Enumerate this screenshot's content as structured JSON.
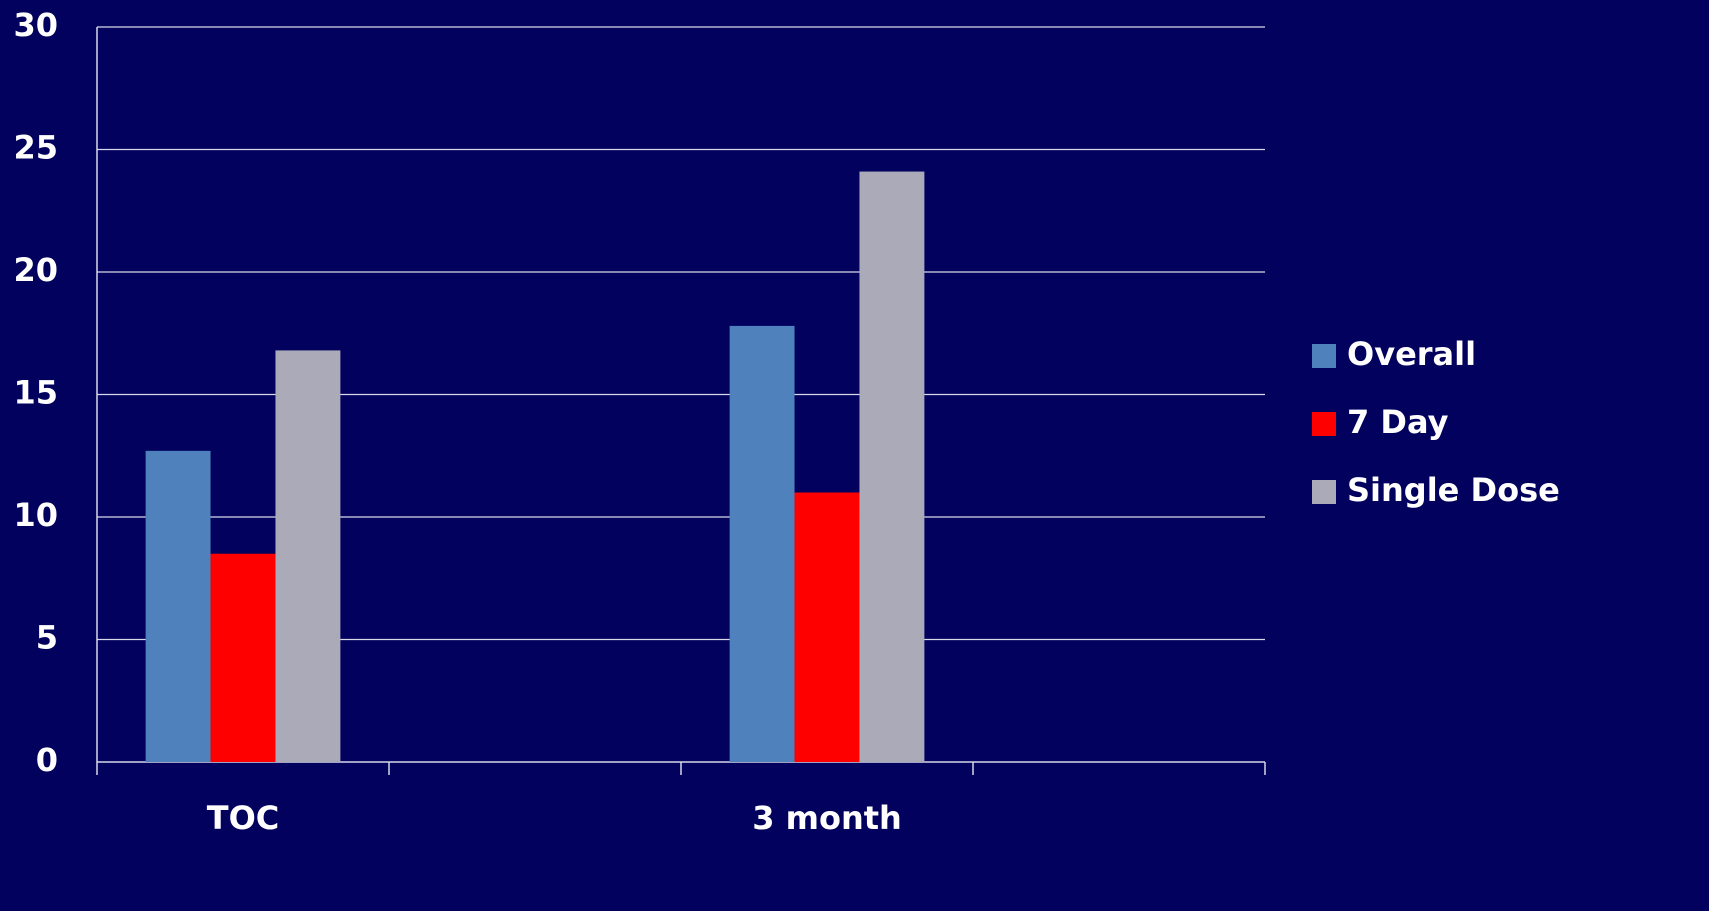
{
  "chart_data": {
    "type": "bar",
    "categories": [
      "TOC",
      null,
      "3 month",
      null
    ],
    "series": [
      {
        "name": "Overall",
        "color": "#4f81bd",
        "values": [
          12.7,
          null,
          17.8,
          null
        ]
      },
      {
        "name": "7 Day",
        "color": "#ff0000",
        "values": [
          8.5,
          null,
          11.0,
          null
        ]
      },
      {
        "name": "Single Dose",
        "color": "#aaaab9",
        "values": [
          16.8,
          null,
          24.1,
          null
        ]
      }
    ],
    "ylim": [
      0,
      30
    ],
    "yticks": [
      0,
      5,
      10,
      15,
      20,
      25,
      30
    ],
    "grid": true,
    "legend": "right"
  }
}
